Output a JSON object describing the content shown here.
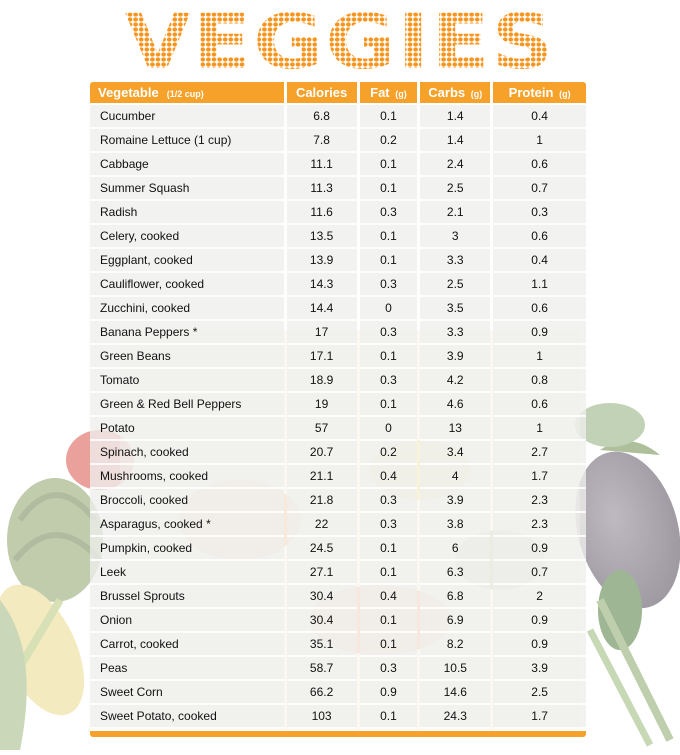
{
  "title": "VEGGIES",
  "colors": {
    "accent": "#f5a12a",
    "title_orange": "#f7941d",
    "row_bg": "#eeeeec"
  },
  "table": {
    "headers": {
      "vegetable": "Vegetable",
      "vegetable_unit": "(1/2 cup)",
      "calories": "Calories",
      "fat": "Fat",
      "fat_unit": "(g)",
      "carbs": "Carbs",
      "carbs_unit": "(g)",
      "protein": "Protein",
      "protein_unit": "(g)"
    },
    "rows": [
      {
        "name": "Cucumber",
        "calories": "6.8",
        "fat": "0.1",
        "carbs": "1.4",
        "protein": "0.4"
      },
      {
        "name": "Romaine Lettuce (1 cup)",
        "calories": "7.8",
        "fat": "0.2",
        "carbs": "1.4",
        "protein": "1"
      },
      {
        "name": "Cabbage",
        "calories": "11.1",
        "fat": "0.1",
        "carbs": "2.4",
        "protein": "0.6"
      },
      {
        "name": "Summer Squash",
        "calories": "11.3",
        "fat": "0.1",
        "carbs": "2.5",
        "protein": "0.7"
      },
      {
        "name": "Radish",
        "calories": "11.6",
        "fat": "0.3",
        "carbs": "2.1",
        "protein": "0.3"
      },
      {
        "name": "Celery, cooked",
        "calories": "13.5",
        "fat": "0.1",
        "carbs": "3",
        "protein": "0.6"
      },
      {
        "name": "Eggplant, cooked",
        "calories": "13.9",
        "fat": "0.1",
        "carbs": "3.3",
        "protein": "0.4"
      },
      {
        "name": "Cauliflower, cooked",
        "calories": "14.3",
        "fat": "0.3",
        "carbs": "2.5",
        "protein": "1.1"
      },
      {
        "name": "Zucchini, cooked",
        "calories": "14.4",
        "fat": "0",
        "carbs": "3.5",
        "protein": "0.6"
      },
      {
        "name": "Banana Peppers *",
        "calories": "17",
        "fat": "0.3",
        "carbs": "3.3",
        "protein": "0.9"
      },
      {
        "name": "Green Beans",
        "calories": "17.1",
        "fat": "0.1",
        "carbs": "3.9",
        "protein": "1"
      },
      {
        "name": "Tomato",
        "calories": "18.9",
        "fat": "0.3",
        "carbs": "4.2",
        "protein": "0.8"
      },
      {
        "name": "Green & Red Bell Peppers",
        "calories": "19",
        "fat": "0.1",
        "carbs": "4.6",
        "protein": "0.6"
      },
      {
        "name": "Potato",
        "calories": "57",
        "fat": "0",
        "carbs": "13",
        "protein": "1"
      },
      {
        "name": "Spinach, cooked",
        "calories": "20.7",
        "fat": "0.2",
        "carbs": "3.4",
        "protein": "2.7"
      },
      {
        "name": "Mushrooms, cooked",
        "calories": "21.1",
        "fat": "0.4",
        "carbs": "4",
        "protein": "1.7"
      },
      {
        "name": "Broccoli, cooked",
        "calories": "21.8",
        "fat": "0.3",
        "carbs": "3.9",
        "protein": "2.3"
      },
      {
        "name": "Asparagus, cooked *",
        "calories": "22",
        "fat": "0.3",
        "carbs": "3.8",
        "protein": "2.3"
      },
      {
        "name": "Pumpkin, cooked",
        "calories": "24.5",
        "fat": "0.1",
        "carbs": "6",
        "protein": "0.9"
      },
      {
        "name": "Leek",
        "calories": "27.1",
        "fat": "0.1",
        "carbs": "6.3",
        "protein": "0.7"
      },
      {
        "name": "Brussel Sprouts",
        "calories": "30.4",
        "fat": "0.4",
        "carbs": "6.8",
        "protein": "2"
      },
      {
        "name": "Onion",
        "calories": "30.4",
        "fat": "0.1",
        "carbs": "6.9",
        "protein": "0.9"
      },
      {
        "name": "Carrot, cooked",
        "calories": "35.1",
        "fat": "0.1",
        "carbs": "8.2",
        "protein": "0.9"
      },
      {
        "name": "Peas",
        "calories": "58.7",
        "fat": "0.3",
        "carbs": "10.5",
        "protein": "3.9"
      },
      {
        "name": "Sweet Corn",
        "calories": "66.2",
        "fat": "0.9",
        "carbs": "14.6",
        "protein": "2.5"
      },
      {
        "name": "Sweet Potato, cooked",
        "calories": "103",
        "fat": "0.1",
        "carbs": "24.3",
        "protein": "1.7"
      }
    ]
  }
}
